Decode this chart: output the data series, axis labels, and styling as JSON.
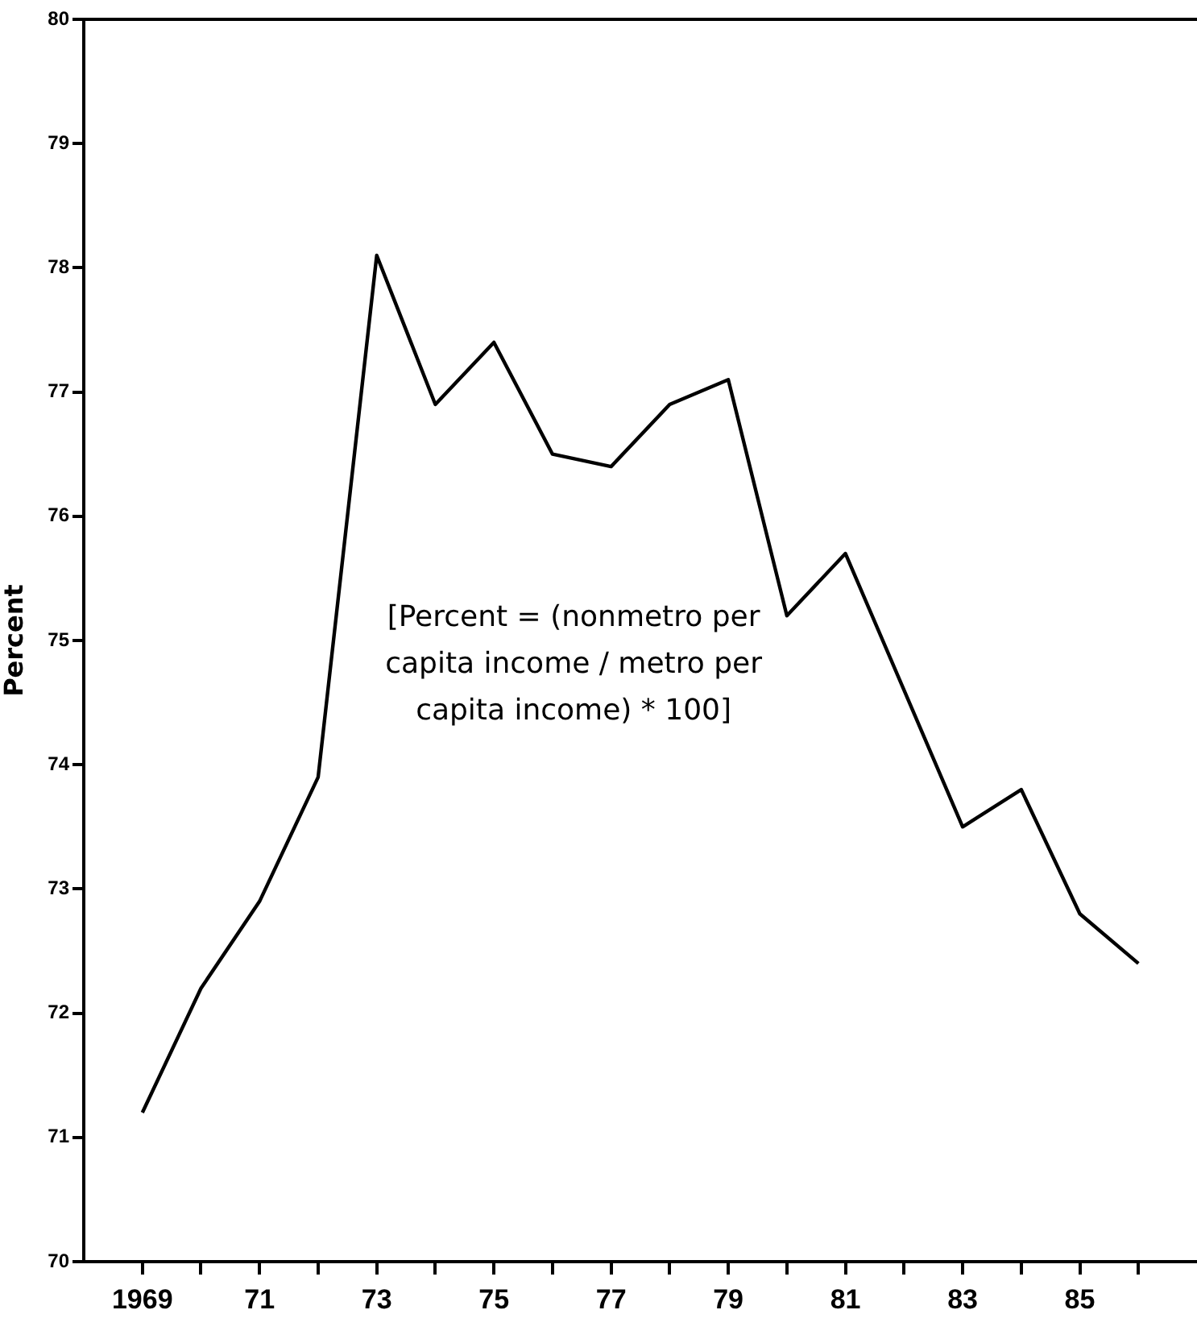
{
  "chart_data": {
    "type": "line",
    "ylabel": "Percent",
    "x": [
      1969,
      1970,
      1971,
      1972,
      1973,
      1974,
      1975,
      1976,
      1977,
      1978,
      1979,
      1980,
      1981,
      1982,
      1983,
      1984,
      1985,
      1986
    ],
    "values": [
      71.2,
      72.2,
      72.9,
      73.9,
      78.1,
      76.9,
      77.4,
      76.5,
      76.4,
      76.9,
      77.1,
      75.2,
      75.7,
      74.6,
      73.5,
      73.8,
      72.8,
      72.4
    ],
    "color": "#000000",
    "xlim": [
      1968,
      1987
    ],
    "xticks": [
      {
        "value": 1969,
        "label": "1969"
      },
      {
        "value": 1970,
        "label": null
      },
      {
        "value": 1971,
        "label": "71"
      },
      {
        "value": 1972,
        "label": null
      },
      {
        "value": 1973,
        "label": "73"
      },
      {
        "value": 1974,
        "label": null
      },
      {
        "value": 1975,
        "label": "75"
      },
      {
        "value": 1976,
        "label": null
      },
      {
        "value": 1977,
        "label": "77"
      },
      {
        "value": 1978,
        "label": null
      },
      {
        "value": 1979,
        "label": "79"
      },
      {
        "value": 1980,
        "label": null
      },
      {
        "value": 1981,
        "label": "81"
      },
      {
        "value": 1982,
        "label": null
      },
      {
        "value": 1983,
        "label": "83"
      },
      {
        "value": 1984,
        "label": null
      },
      {
        "value": 1985,
        "label": "85"
      },
      {
        "value": 1986,
        "label": null
      }
    ],
    "ylim": [
      70,
      80
    ],
    "yticks": [
      70,
      71,
      72,
      73,
      74,
      75,
      76,
      77,
      78,
      79,
      80
    ],
    "annotations": [
      "[Percent = (nonmetro per\ncapita income / metro per\ncapita income) * 100]"
    ],
    "grid": false,
    "legend": false,
    "marker": "none",
    "line_style": "solid"
  }
}
